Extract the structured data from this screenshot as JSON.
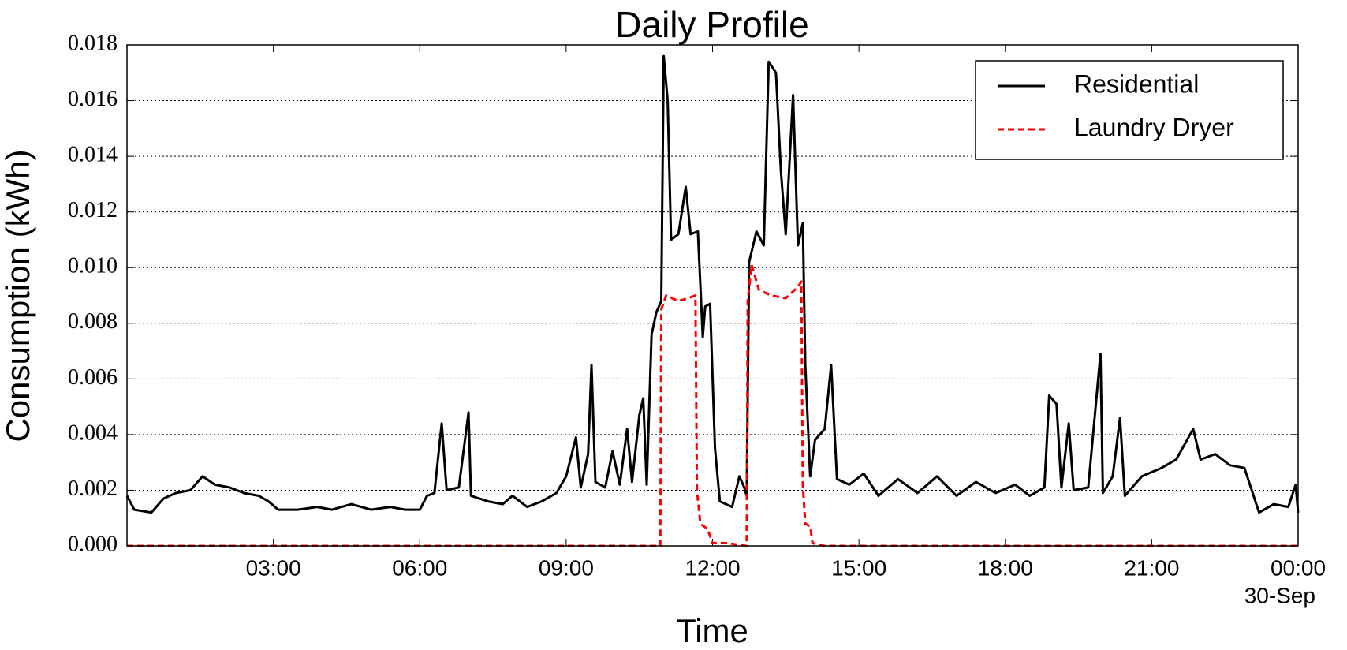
{
  "chart_data": {
    "type": "line",
    "title": "Daily Profile",
    "x_label": "Time",
    "y_label": "Consumption (kWh)",
    "xlim": [
      0,
      24
    ],
    "xticks": [
      {
        "value": 3,
        "label": "03:00"
      },
      {
        "value": 6,
        "label": "06:00"
      },
      {
        "value": 9,
        "label": "09:00"
      },
      {
        "value": 12,
        "label": "12:00"
      },
      {
        "value": 15,
        "label": "15:00"
      },
      {
        "value": 18,
        "label": "18:00"
      },
      {
        "value": 21,
        "label": "21:00"
      },
      {
        "value": 24,
        "label": "00:00"
      }
    ],
    "x_date_label": "30-Sep",
    "ylim": [
      0,
      0.018
    ],
    "yticks": [
      {
        "value": 0,
        "label": "0.000"
      },
      {
        "value": 0.002,
        "label": "0.002"
      },
      {
        "value": 0.004,
        "label": "0.004"
      },
      {
        "value": 0.006,
        "label": "0.006"
      },
      {
        "value": 0.008,
        "label": "0.008"
      },
      {
        "value": 0.01,
        "label": "0.010"
      },
      {
        "value": 0.012,
        "label": "0.012"
      },
      {
        "value": 0.014,
        "label": "0.014"
      },
      {
        "value": 0.016,
        "label": "0.016"
      },
      {
        "value": 0.018,
        "label": "0.018"
      }
    ],
    "grid": true,
    "legend": "upper right",
    "series": [
      {
        "name": "Residential",
        "color": "#000000",
        "dash": false,
        "x": [
          0,
          0.15,
          0.5,
          0.75,
          1.0,
          1.3,
          1.55,
          1.8,
          2.1,
          2.4,
          2.7,
          2.9,
          3.1,
          3.5,
          3.9,
          4.2,
          4.6,
          5.0,
          5.4,
          5.7,
          6.0,
          6.15,
          6.3,
          6.45,
          6.55,
          6.8,
          7.0,
          7.05,
          7.4,
          7.7,
          7.9,
          8.2,
          8.5,
          8.8,
          9.0,
          9.2,
          9.3,
          9.45,
          9.52,
          9.6,
          9.8,
          9.95,
          10.1,
          10.25,
          10.35,
          10.5,
          10.58,
          10.65,
          10.75,
          10.85,
          10.95,
          11.0,
          11.08,
          11.15,
          11.3,
          11.45,
          11.55,
          11.7,
          11.8,
          11.85,
          11.95,
          12.05,
          12.15,
          12.4,
          12.55,
          12.65,
          12.7,
          12.75,
          12.9,
          13.05,
          13.15,
          13.3,
          13.4,
          13.5,
          13.65,
          13.75,
          13.85,
          13.9,
          14.0,
          14.1,
          14.3,
          14.43,
          14.55,
          14.8,
          15.1,
          15.4,
          15.8,
          16.2,
          16.6,
          17.0,
          17.4,
          17.8,
          18.2,
          18.5,
          18.8,
          18.9,
          19.05,
          19.15,
          19.3,
          19.4,
          19.7,
          19.95,
          20.0,
          20.2,
          20.35,
          20.45,
          20.8,
          21.2,
          21.5,
          21.85,
          22.0,
          22.3,
          22.6,
          22.9,
          23.05,
          23.2,
          23.5,
          23.8,
          23.95,
          24.0
        ],
        "values": [
          0.0018,
          0.0013,
          0.0012,
          0.0017,
          0.0019,
          0.002,
          0.0025,
          0.0022,
          0.0021,
          0.0019,
          0.0018,
          0.0016,
          0.0013,
          0.0013,
          0.0014,
          0.0013,
          0.0015,
          0.0013,
          0.0014,
          0.0013,
          0.0013,
          0.0018,
          0.0019,
          0.0044,
          0.002,
          0.0021,
          0.0048,
          0.0018,
          0.0016,
          0.0015,
          0.0018,
          0.0014,
          0.0016,
          0.0019,
          0.0025,
          0.0039,
          0.0021,
          0.0033,
          0.0065,
          0.0023,
          0.0021,
          0.0034,
          0.0022,
          0.0042,
          0.0023,
          0.0047,
          0.0053,
          0.0022,
          0.0076,
          0.0084,
          0.0088,
          0.0176,
          0.016,
          0.011,
          0.0112,
          0.0129,
          0.0112,
          0.0113,
          0.0075,
          0.0086,
          0.0087,
          0.0035,
          0.0016,
          0.0014,
          0.0025,
          0.0021,
          0.0018,
          0.0102,
          0.0113,
          0.0108,
          0.0174,
          0.017,
          0.0135,
          0.0112,
          0.0162,
          0.0108,
          0.0116,
          0.0065,
          0.0025,
          0.0038,
          0.0042,
          0.0065,
          0.0024,
          0.0022,
          0.0026,
          0.0018,
          0.0024,
          0.0019,
          0.0025,
          0.0018,
          0.0023,
          0.0019,
          0.0022,
          0.0018,
          0.0021,
          0.0054,
          0.0051,
          0.0021,
          0.0044,
          0.002,
          0.0021,
          0.0069,
          0.0019,
          0.0025,
          0.0046,
          0.0018,
          0.0025,
          0.0028,
          0.0031,
          0.0042,
          0.0031,
          0.0033,
          0.0029,
          0.0028,
          0.002,
          0.0012,
          0.0015,
          0.0014,
          0.0022,
          0.0012
        ]
      },
      {
        "name": "Laundry Dryer",
        "color": "#ff0000",
        "dash": true,
        "x": [
          0,
          10.93,
          10.95,
          11.05,
          11.3,
          11.5,
          11.65,
          11.68,
          11.75,
          11.9,
          12.0,
          12.3,
          12.7,
          12.72,
          12.8,
          12.95,
          13.2,
          13.5,
          13.75,
          13.82,
          13.85,
          13.9,
          14.0,
          14.05,
          14.3,
          24
        ],
        "values": [
          0,
          0,
          0.0085,
          0.009,
          0.0088,
          0.0089,
          0.009,
          0.002,
          0.0008,
          0.0006,
          0.0001,
          0.0001,
          0,
          0.0088,
          0.0101,
          0.0092,
          0.009,
          0.0089,
          0.0093,
          0.0095,
          0.0022,
          0.0008,
          0.0007,
          0.0001,
          0,
          0
        ]
      }
    ]
  }
}
